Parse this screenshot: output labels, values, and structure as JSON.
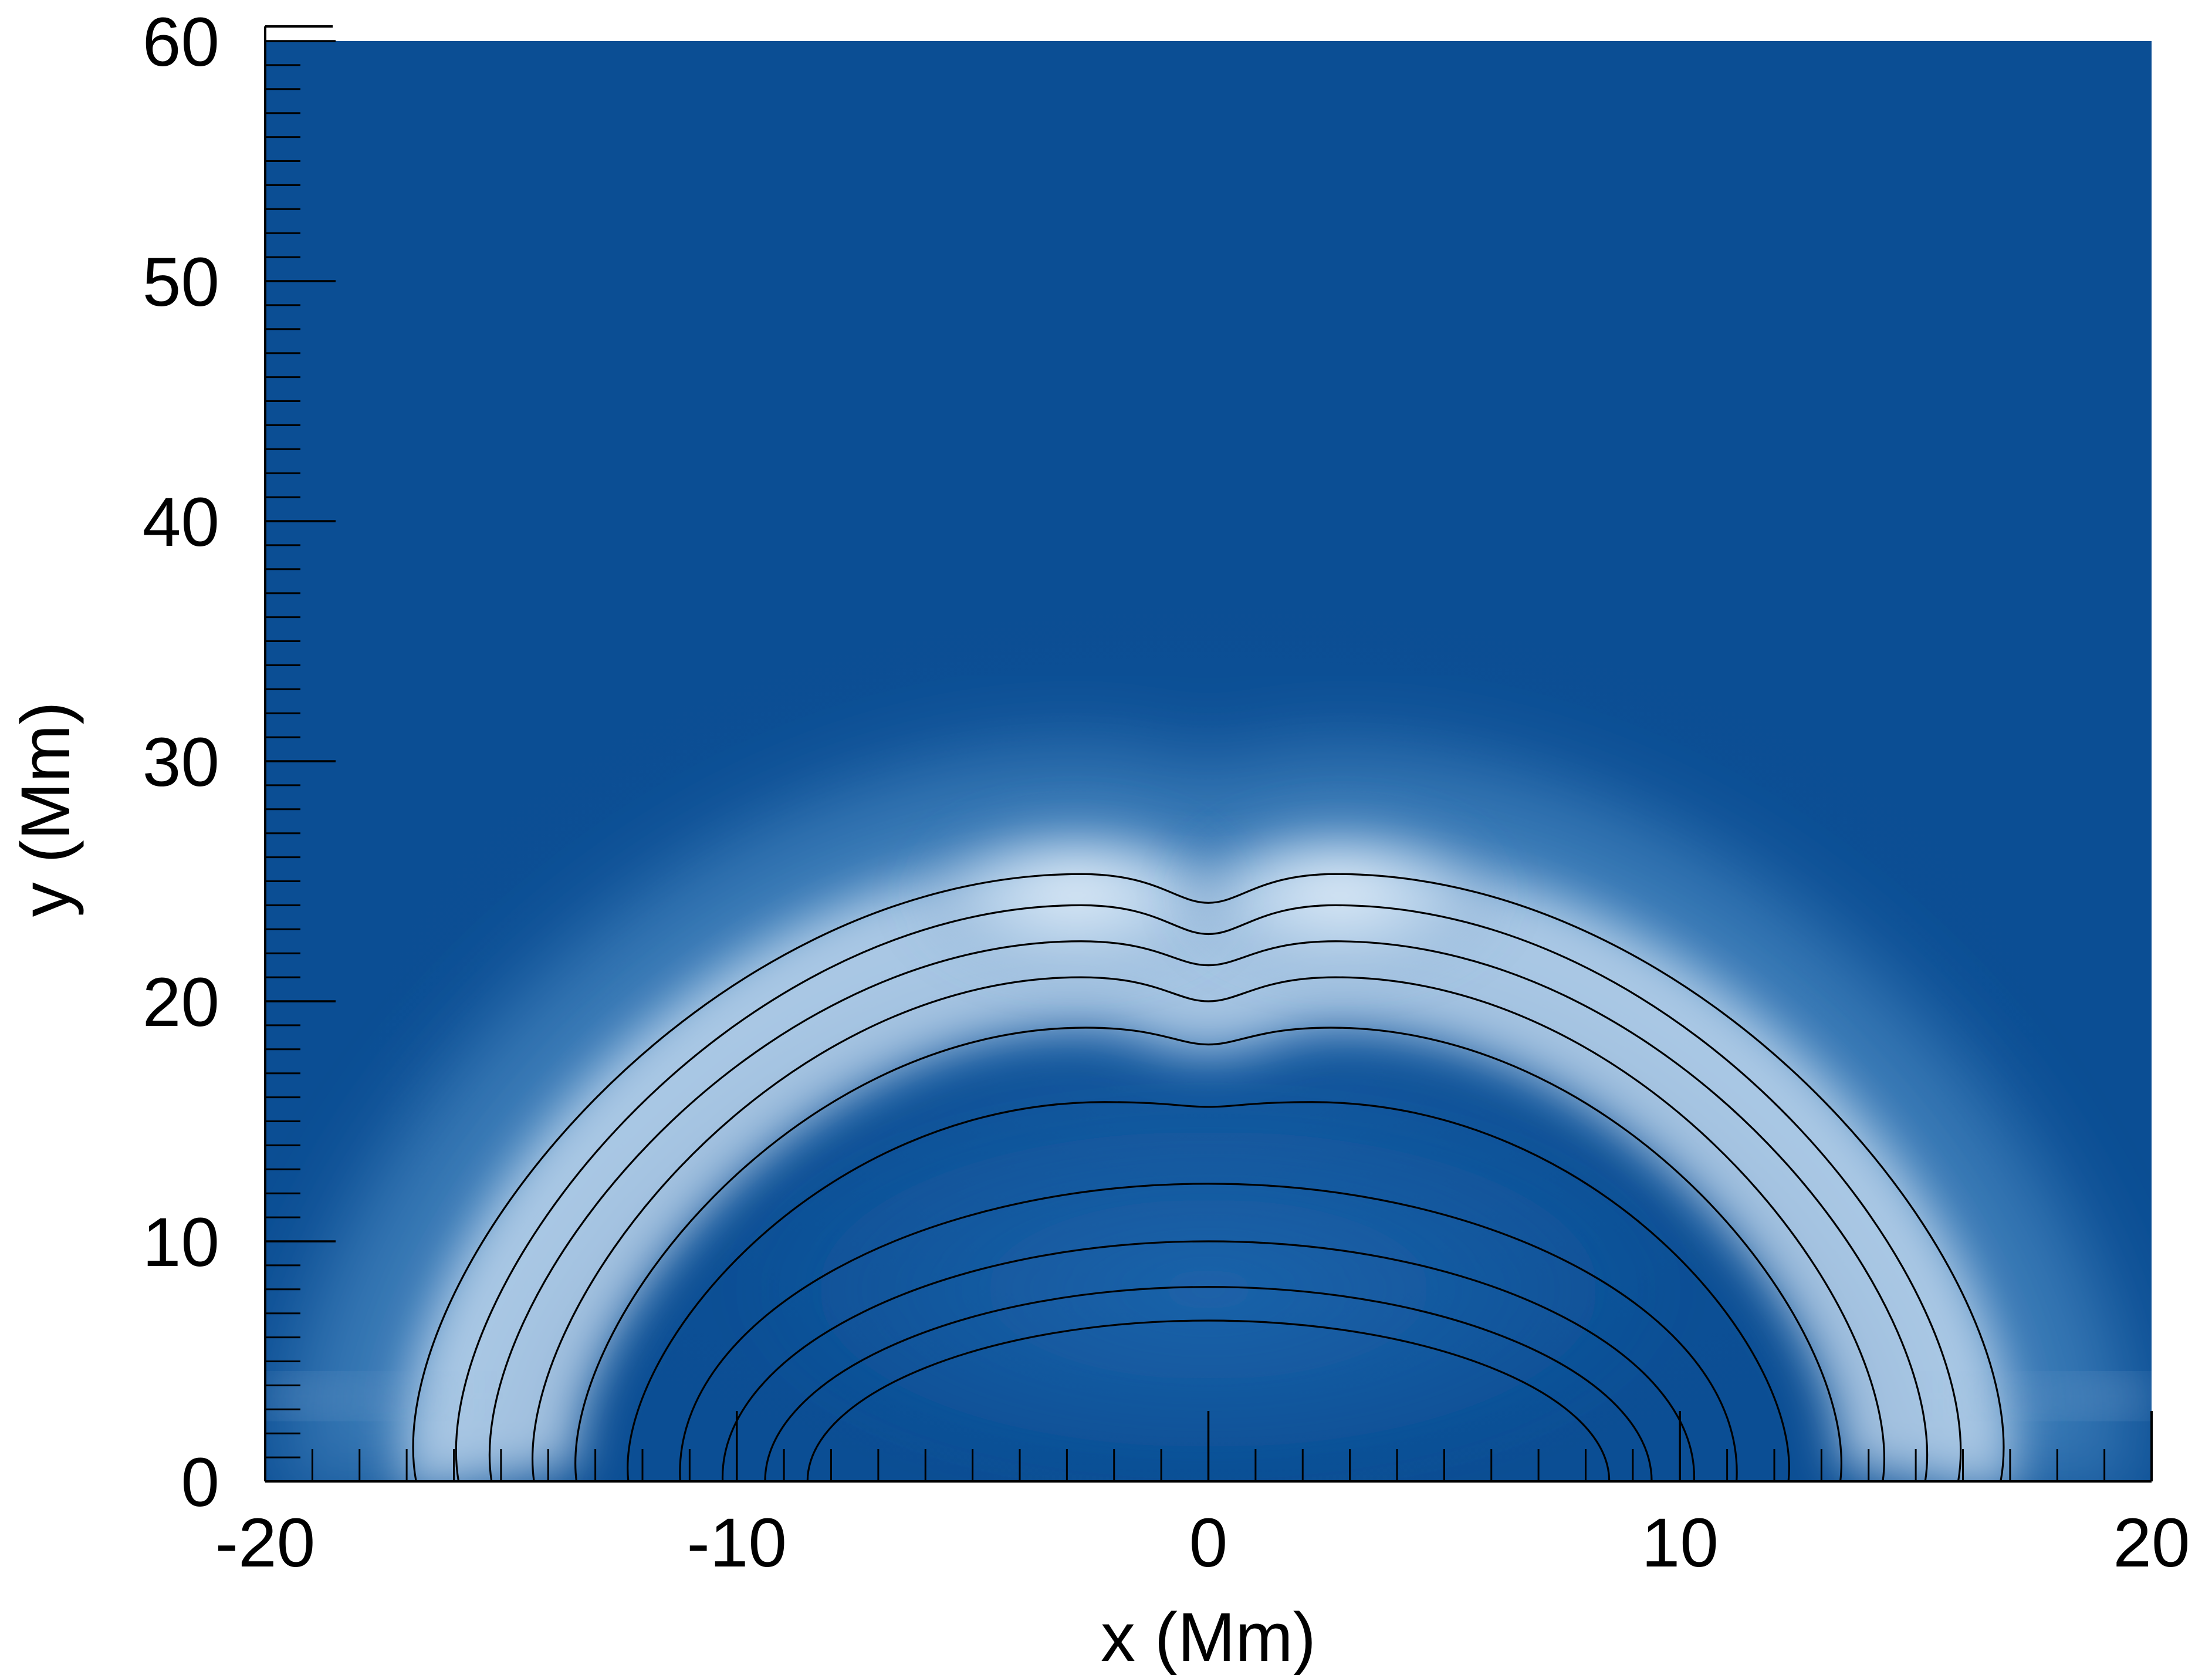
{
  "chart_data": {
    "type": "heatmap",
    "title": "",
    "xlabel": "x (Mm)",
    "ylabel": "y (Mm)",
    "xlim": [
      -20,
      20
    ],
    "ylim": [
      0,
      60
    ],
    "x_ticks": [
      -20,
      -10,
      0,
      10,
      20
    ],
    "x_tick_labels": [
      "-20",
      "-10",
      "0",
      "10",
      "20"
    ],
    "y_ticks": [
      0,
      10,
      20,
      30,
      40,
      50,
      60
    ],
    "y_tick_labels": [
      "0",
      "10",
      "20",
      "30",
      "40",
      "50",
      "60"
    ],
    "x_minor_step": 1,
    "y_minor_step": 1,
    "grid": false,
    "legend": "none",
    "colormap": [
      "#0b4e94",
      "#1a65ab",
      "#4f93c8",
      "#a9cbe6",
      "#e2eef9"
    ],
    "background_color": "#0b4e94",
    "contour_color": "#000000",
    "field_lines": [
      {
        "apex_y": 6.7,
        "foot_x": 8.5,
        "shoulder_y": 6.7,
        "dip": 0.0,
        "shoulder_x": 0,
        "bulge": 0.0
      },
      {
        "apex_y": 8.1,
        "foot_x": 9.4,
        "shoulder_y": 8.1,
        "dip": 0.0,
        "shoulder_x": 0,
        "bulge": 0.0
      },
      {
        "apex_y": 10.0,
        "foot_x": 10.3,
        "shoulder_y": 10.0,
        "dip": 0.0,
        "shoulder_x": 0,
        "bulge": 0.1
      },
      {
        "apex_y": 12.4,
        "foot_x": 11.2,
        "shoulder_y": 12.4,
        "dip": 0.0,
        "shoulder_x": 0,
        "bulge": 0.2
      },
      {
        "apex_y": 15.6,
        "foot_x": 12.3,
        "shoulder_y": 15.8,
        "dip": 0.2,
        "shoulder_x": 2.2,
        "bulge": 0.3
      },
      {
        "apex_y": 18.2,
        "foot_x": 13.4,
        "shoulder_y": 18.9,
        "dip": 0.7,
        "shoulder_x": 2.6,
        "bulge": 0.4
      },
      {
        "apex_y": 20.0,
        "foot_x": 14.3,
        "shoulder_y": 21.0,
        "dip": 1.0,
        "shoulder_x": 2.7,
        "bulge": 0.5
      },
      {
        "apex_y": 21.5,
        "foot_x": 15.2,
        "shoulder_y": 22.5,
        "dip": 1.0,
        "shoulder_x": 2.7,
        "bulge": 0.6
      },
      {
        "apex_y": 22.8,
        "foot_x": 15.9,
        "shoulder_y": 24.0,
        "dip": 1.2,
        "shoulder_x": 2.7,
        "bulge": 0.7
      },
      {
        "apex_y": 24.1,
        "foot_x": 16.8,
        "shoulder_y": 25.3,
        "dip": 1.2,
        "shoulder_x": 2.7,
        "bulge": 0.8
      }
    ]
  }
}
